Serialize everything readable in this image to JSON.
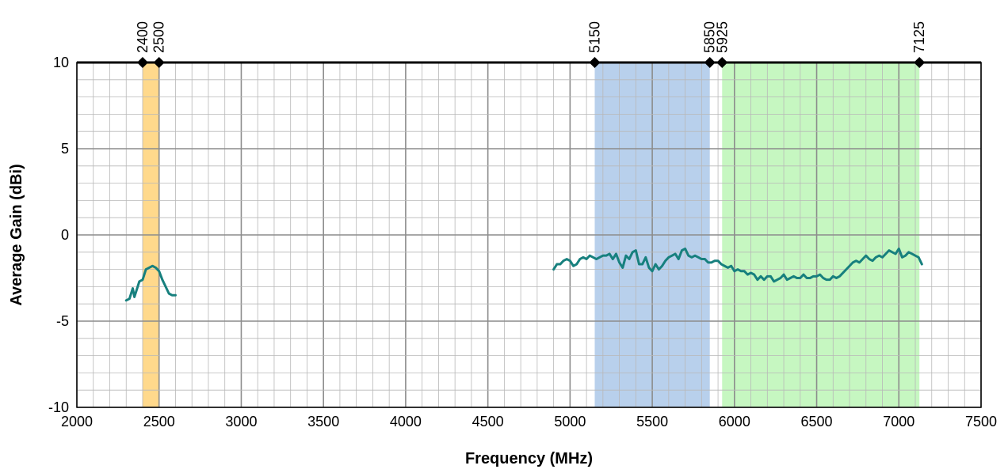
{
  "chart_data": {
    "type": "line",
    "title": "",
    "xlabel": "Frequency (MHz)",
    "ylabel": "Average Gain (dBi)",
    "xlim": [
      2000,
      7500
    ],
    "ylim": [
      -10,
      10
    ],
    "x_ticks": [
      2000,
      2500,
      3000,
      3500,
      4000,
      4500,
      5000,
      5500,
      6000,
      6500,
      7000,
      7500
    ],
    "y_ticks": [
      -10,
      -5,
      0,
      5,
      10
    ],
    "x_minor_step": 100,
    "y_minor_step": 1,
    "grid": true,
    "line_color": "#17807E",
    "bands": [
      {
        "start": 2400,
        "end": 2500,
        "color": "#FFD98C"
      },
      {
        "start": 5150,
        "end": 5850,
        "color": "#B8D0EC"
      },
      {
        "start": 5925,
        "end": 7125,
        "color": "#C6F7C1"
      }
    ],
    "band_markers": [
      {
        "x": 2400,
        "label": "2400"
      },
      {
        "x": 2500,
        "label": "2500"
      },
      {
        "x": 5150,
        "label": "5150"
      },
      {
        "x": 5850,
        "label": "5850"
      },
      {
        "x": 5925,
        "label": "5925"
      },
      {
        "x": 7125,
        "label": "7125"
      }
    ],
    "series": [
      {
        "x": [
          2300,
          2320,
          2340,
          2350,
          2360,
          2380,
          2400,
          2420,
          2440,
          2460,
          2480,
          2500,
          2520,
          2540,
          2560,
          2580,
          2600
        ],
        "y": [
          -3.8,
          -3.7,
          -3.1,
          -3.6,
          -3.3,
          -2.7,
          -2.6,
          -2.0,
          -1.9,
          -1.8,
          -1.9,
          -2.1,
          -2.6,
          -3.0,
          -3.4,
          -3.5,
          -3.5
        ]
      },
      {
        "x": [
          4900,
          4920,
          4940,
          4960,
          4980,
          5000,
          5020,
          5040,
          5060,
          5080,
          5100,
          5120,
          5140,
          5160,
          5180,
          5200,
          5220,
          5240,
          5260,
          5280,
          5300,
          5320,
          5340,
          5360,
          5380,
          5400,
          5420,
          5440,
          5460,
          5480,
          5500,
          5520,
          5540,
          5560,
          5580,
          5600,
          5620,
          5640,
          5660,
          5680,
          5700,
          5720,
          5740,
          5760,
          5780,
          5800,
          5820,
          5840,
          5860,
          5880,
          5900,
          5920,
          5940,
          5960,
          5980,
          6000,
          6020,
          6040,
          6060,
          6080,
          6100,
          6120,
          6140,
          6160,
          6180,
          6200,
          6220,
          6240,
          6260,
          6280,
          6300,
          6320,
          6340,
          6360,
          6380,
          6400,
          6420,
          6440,
          6460,
          6480,
          6500,
          6520,
          6540,
          6560,
          6580,
          6600,
          6620,
          6640,
          6660,
          6680,
          6700,
          6720,
          6740,
          6760,
          6780,
          6800,
          6820,
          6840,
          6860,
          6880,
          6900,
          6920,
          6940,
          6960,
          6980,
          7000,
          7020,
          7040,
          7060,
          7080,
          7100,
          7120,
          7140
        ],
        "y": [
          -2.0,
          -1.7,
          -1.7,
          -1.5,
          -1.4,
          -1.5,
          -1.8,
          -1.7,
          -1.4,
          -1.3,
          -1.4,
          -1.2,
          -1.3,
          -1.4,
          -1.3,
          -1.2,
          -1.2,
          -1.1,
          -1.4,
          -1.1,
          -1.6,
          -1.9,
          -1.2,
          -1.4,
          -1.0,
          -0.9,
          -1.7,
          -1.7,
          -1.3,
          -1.9,
          -2.1,
          -1.7,
          -2.0,
          -1.8,
          -1.5,
          -1.3,
          -1.2,
          -1.1,
          -1.4,
          -0.9,
          -0.8,
          -1.2,
          -1.3,
          -1.2,
          -1.3,
          -1.4,
          -1.4,
          -1.6,
          -1.6,
          -1.5,
          -1.5,
          -1.7,
          -1.8,
          -1.9,
          -1.8,
          -2.1,
          -2.0,
          -2.1,
          -2.1,
          -2.3,
          -2.2,
          -2.3,
          -2.6,
          -2.4,
          -2.6,
          -2.4,
          -2.4,
          -2.7,
          -2.6,
          -2.5,
          -2.3,
          -2.6,
          -2.5,
          -2.4,
          -2.5,
          -2.5,
          -2.3,
          -2.5,
          -2.5,
          -2.4,
          -2.4,
          -2.3,
          -2.5,
          -2.6,
          -2.6,
          -2.4,
          -2.5,
          -2.4,
          -2.2,
          -2.0,
          -1.8,
          -1.6,
          -1.5,
          -1.6,
          -1.4,
          -1.2,
          -1.4,
          -1.5,
          -1.3,
          -1.2,
          -1.3,
          -1.1,
          -0.9,
          -1.0,
          -1.1,
          -0.8,
          -1.3,
          -1.2,
          -1.0,
          -1.1,
          -1.2,
          -1.3,
          -1.7
        ]
      }
    ]
  }
}
